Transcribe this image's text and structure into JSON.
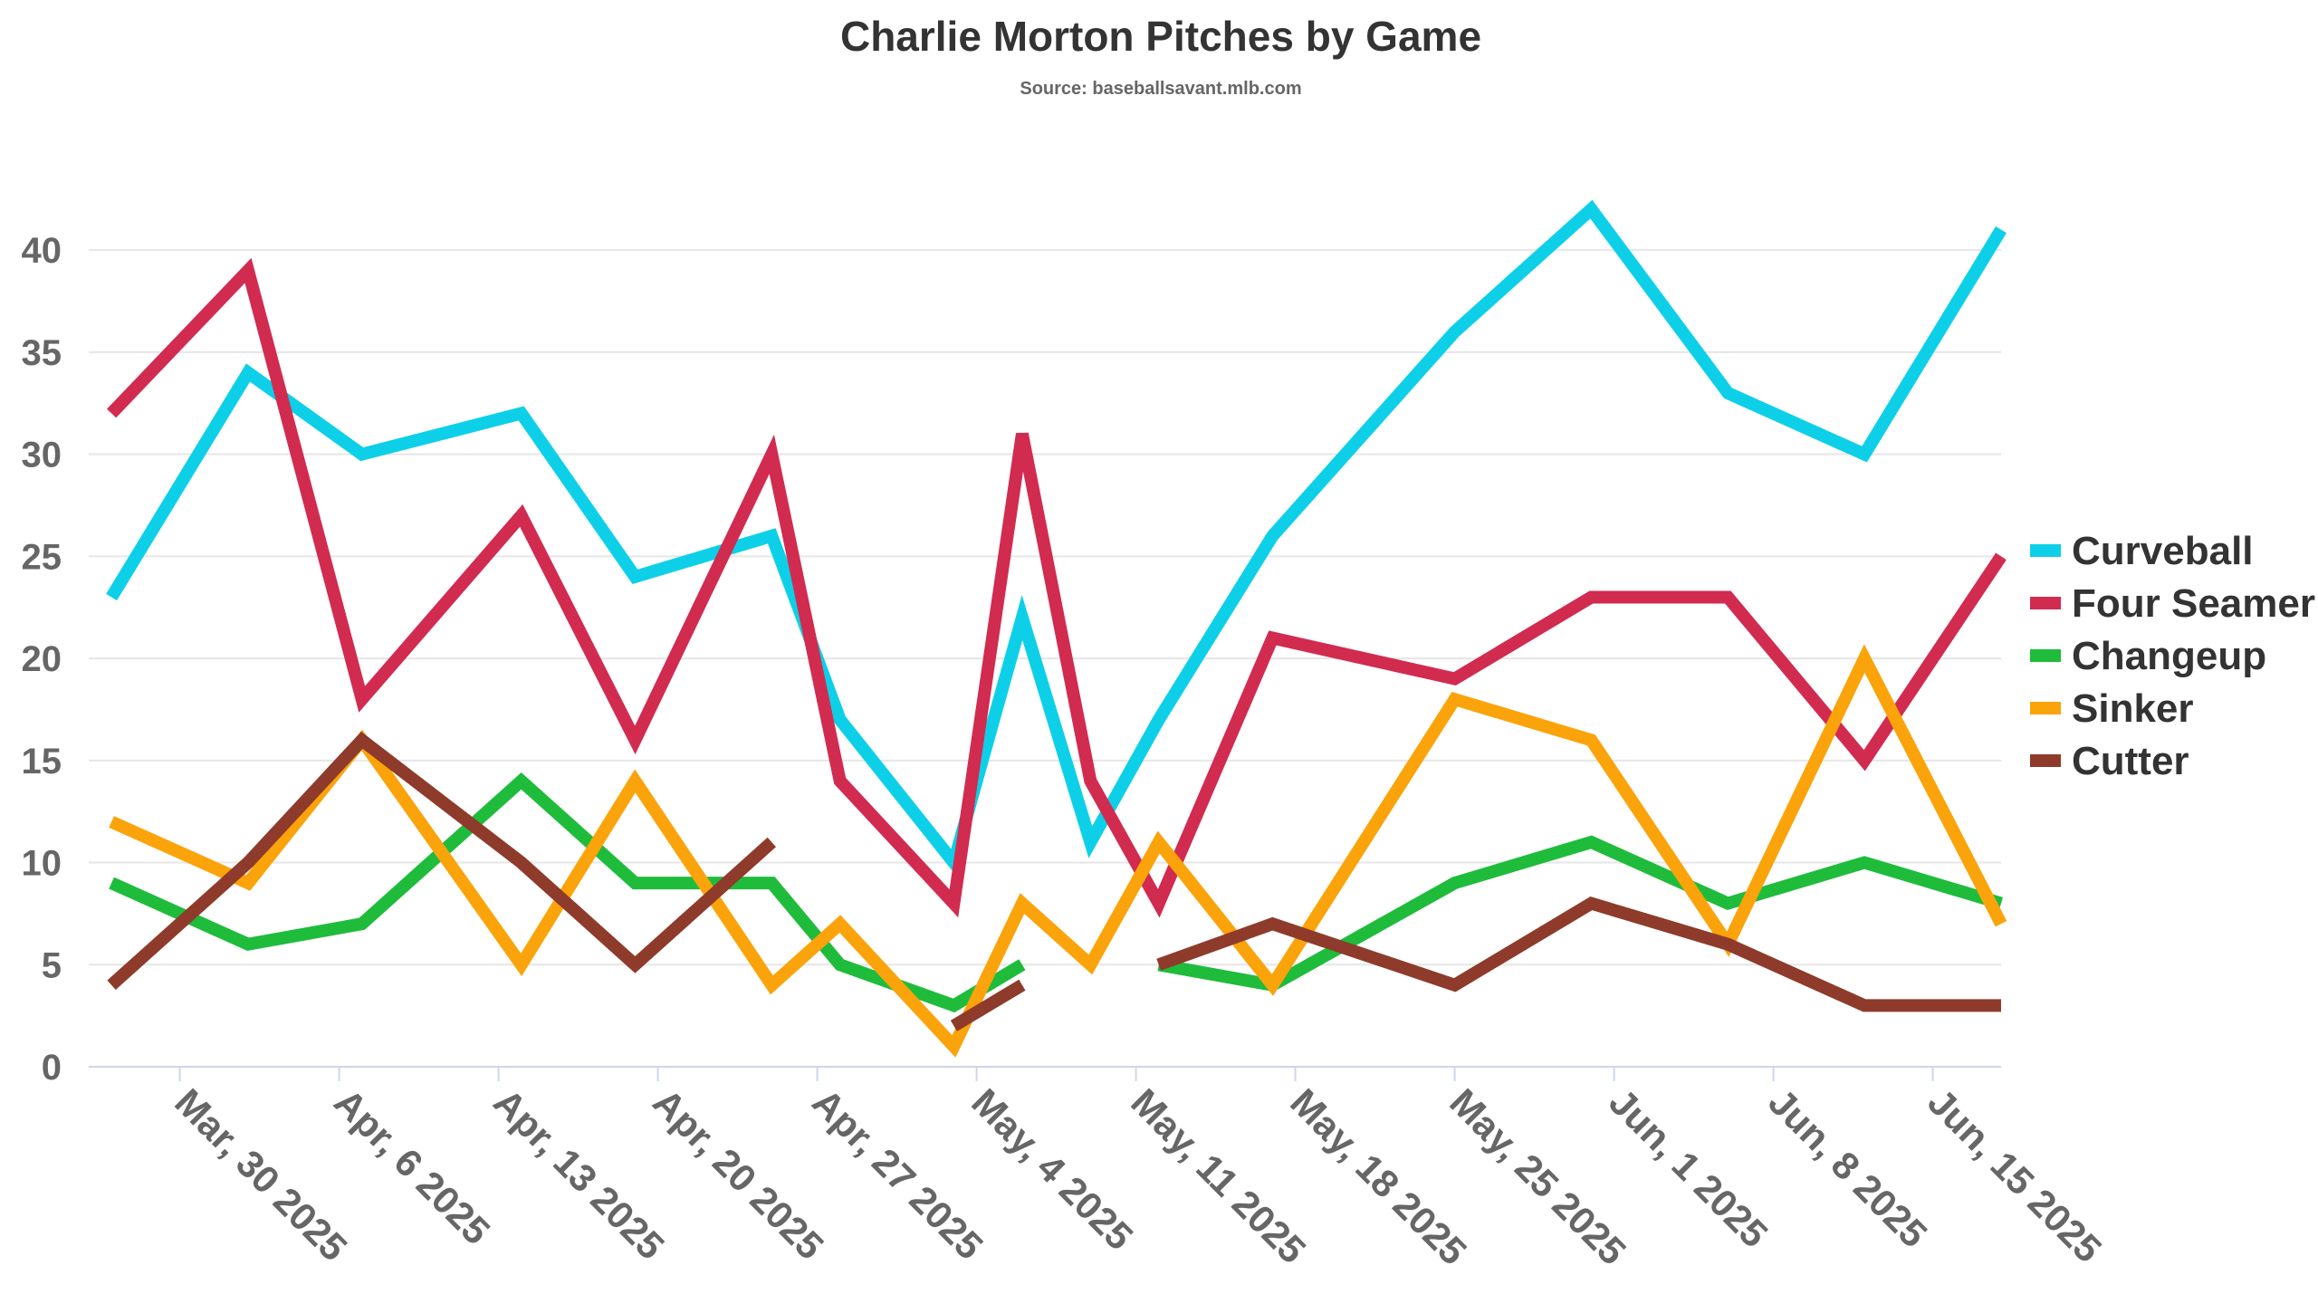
{
  "chart_data": {
    "type": "line",
    "title": "Charlie Morton Pitches by Game",
    "subtitle": "Source: baseballsavant.mlb.com",
    "xlabel": "",
    "ylabel": "",
    "ylim": [
      0,
      44
    ],
    "yticks": [
      0,
      5,
      10,
      15,
      20,
      25,
      30,
      35,
      40
    ],
    "xlim": [
      "2025-03-26",
      "2025-06-18"
    ],
    "xticks": [
      {
        "date": "2025-03-30",
        "label": "Mar, 30 2025"
      },
      {
        "date": "2025-04-06",
        "label": "Apr, 6 2025"
      },
      {
        "date": "2025-04-13",
        "label": "Apr, 13 2025"
      },
      {
        "date": "2025-04-20",
        "label": "Apr, 20 2025"
      },
      {
        "date": "2025-04-27",
        "label": "Apr, 27 2025"
      },
      {
        "date": "2025-05-04",
        "label": "May, 4 2025"
      },
      {
        "date": "2025-05-11",
        "label": "May, 11 2025"
      },
      {
        "date": "2025-05-18",
        "label": "May, 18 2025"
      },
      {
        "date": "2025-05-25",
        "label": "May, 25 2025"
      },
      {
        "date": "2025-06-01",
        "label": "Jun, 1 2025"
      },
      {
        "date": "2025-06-08",
        "label": "Jun, 8 2025"
      },
      {
        "date": "2025-06-15",
        "label": "Jun, 15 2025"
      }
    ],
    "grid": true,
    "legend_position": "right",
    "x": [
      "2025-03-27",
      "2025-04-02",
      "2025-04-07",
      "2025-04-14",
      "2025-04-19",
      "2025-04-25",
      "2025-04-28",
      "2025-05-03",
      "2025-05-06",
      "2025-05-09",
      "2025-05-12",
      "2025-05-17",
      "2025-05-25",
      "2025-05-31",
      "2025-06-06",
      "2025-06-12",
      "2025-06-18"
    ],
    "series": [
      {
        "name": "Curveball",
        "color": "#0dd0e8",
        "values": [
          23,
          34,
          30,
          32,
          24,
          26,
          17,
          10,
          22,
          11,
          17,
          26,
          36,
          42,
          33,
          30,
          41
        ]
      },
      {
        "name": "Four Seamer",
        "color": "#d22b50",
        "values": [
          32,
          39,
          18,
          27,
          16,
          30,
          14,
          8,
          31,
          14,
          8,
          21,
          19,
          23,
          23,
          15,
          25
        ]
      },
      {
        "name": "Changeup",
        "color": "#1fbc3c",
        "values": [
          9,
          6,
          7,
          14,
          9,
          9,
          5,
          3,
          5,
          null,
          5,
          4,
          9,
          11,
          8,
          10,
          8
        ]
      },
      {
        "name": "Sinker",
        "color": "#fba30a",
        "values": [
          12,
          9,
          16,
          5,
          14,
          4,
          7,
          1,
          8,
          5,
          11,
          4,
          18,
          16,
          6,
          20,
          7
        ]
      },
      {
        "name": "Cutter",
        "color": "#8e3b2b",
        "values": [
          4,
          10,
          16,
          10,
          5,
          11,
          null,
          2,
          4,
          null,
          5,
          7,
          4,
          8,
          6,
          3,
          3
        ]
      }
    ]
  }
}
